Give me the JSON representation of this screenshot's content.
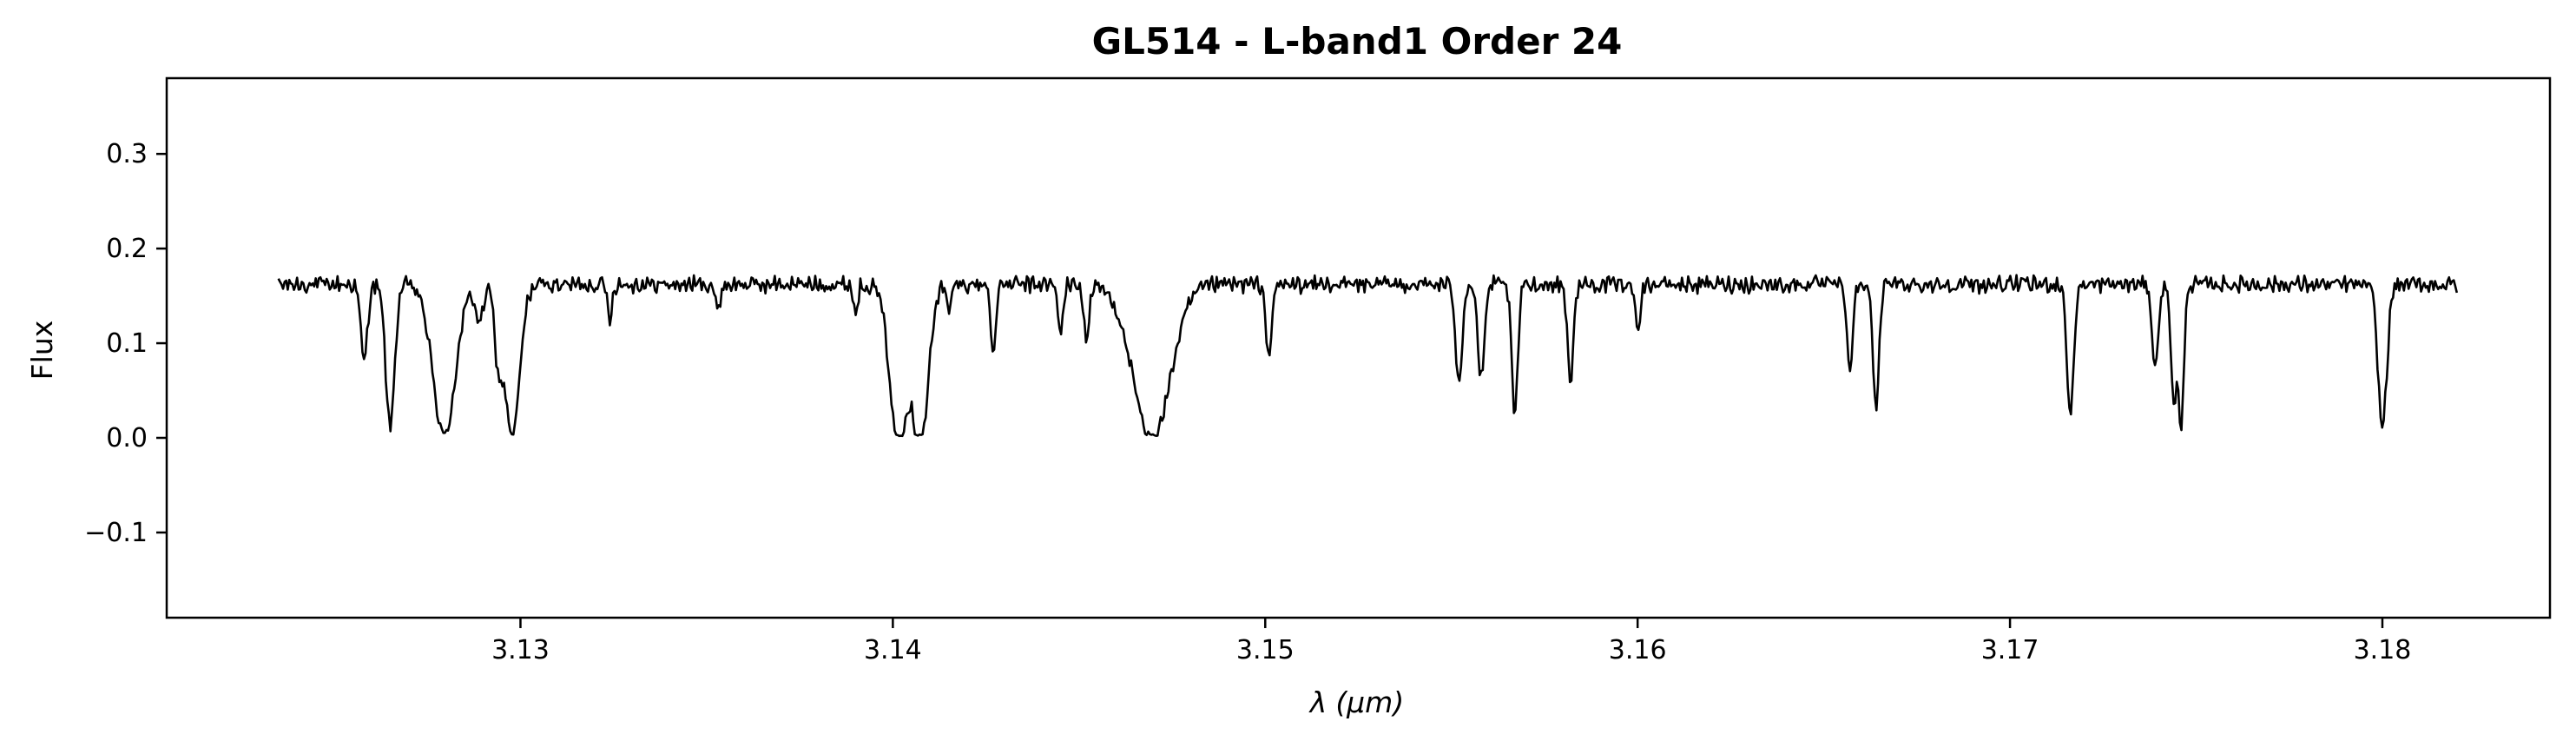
{
  "chart_data": {
    "type": "line",
    "title": "GL514 - L-band1 Order 24",
    "xlabel_symbol": "λ",
    "xlabel_unit": "(μm)",
    "ylabel": "Flux",
    "xlim": [
      3.1205,
      3.1845
    ],
    "ylim": [
      -0.19,
      0.38
    ],
    "xticks": [
      3.13,
      3.14,
      3.15,
      3.16,
      3.17,
      3.18
    ],
    "xtick_labels": [
      "3.13",
      "3.14",
      "3.15",
      "3.16",
      "3.17",
      "3.18"
    ],
    "yticks": [
      -0.1,
      0.0,
      0.1,
      0.2,
      0.3
    ],
    "ytick_labels": [
      "−0.1",
      "0.0",
      "0.1",
      "0.2",
      "0.3"
    ],
    "grid": false,
    "line_color": "#000000",
    "series": [
      {
        "x_start": 3.1235,
        "x_end": 3.182,
        "continuum": 0.162,
        "noise": 0.007,
        "absorption_lines": [
          {
            "center": 3.1258,
            "depth": 0.08,
            "width": 9e-05
          },
          {
            "center": 3.1265,
            "depth": 0.15,
            "width": 0.00012
          },
          {
            "center": 3.12795,
            "depth": 0.16,
            "width": 0.0003
          },
          {
            "center": 3.1289,
            "depth": 0.04,
            "width": 0.0001
          },
          {
            "center": 3.1294,
            "depth": 0.07,
            "width": 0.0001
          },
          {
            "center": 3.12978,
            "depth": 0.16,
            "width": 0.0002
          },
          {
            "center": 3.1324,
            "depth": 0.035,
            "width": 6e-05
          },
          {
            "center": 3.1353,
            "depth": 0.03,
            "width": 6e-05
          },
          {
            "center": 3.139,
            "depth": 0.03,
            "width": 6e-05
          },
          {
            "center": 3.14015,
            "depth": 0.17,
            "width": 0.00023
          },
          {
            "center": 3.14075,
            "depth": 0.17,
            "width": 0.0002
          },
          {
            "center": 3.1415,
            "depth": 0.03,
            "width": 6e-05
          },
          {
            "center": 3.1427,
            "depth": 0.07,
            "width": 7e-05
          },
          {
            "center": 3.1445,
            "depth": 0.05,
            "width": 7e-05
          },
          {
            "center": 3.1452,
            "depth": 0.06,
            "width": 7e-05
          },
          {
            "center": 3.14695,
            "depth": 0.165,
            "width": 0.0005
          },
          {
            "center": 3.1501,
            "depth": 0.075,
            "width": 8e-05
          },
          {
            "center": 3.1552,
            "depth": 0.1,
            "width": 9e-05
          },
          {
            "center": 3.1558,
            "depth": 0.1,
            "width": 9e-05
          },
          {
            "center": 3.1567,
            "depth": 0.14,
            "width": 8e-05
          },
          {
            "center": 3.1582,
            "depth": 0.1,
            "width": 8e-05
          },
          {
            "center": 3.16,
            "depth": 0.045,
            "width": 7e-05
          },
          {
            "center": 3.1657,
            "depth": 0.09,
            "width": 8e-05
          },
          {
            "center": 3.1664,
            "depth": 0.13,
            "width": 8e-05
          },
          {
            "center": 3.1717,
            "depth": 0.04,
            "width": 7e-05
          },
          {
            "center": 3.1716,
            "depth": 0.12,
            "width": 8e-05
          },
          {
            "center": 3.1739,
            "depth": 0.09,
            "width": 8e-05
          },
          {
            "center": 3.1744,
            "depth": 0.12,
            "width": 8e-05
          },
          {
            "center": 3.1746,
            "depth": 0.15,
            "width": 7e-05
          },
          {
            "center": 3.18,
            "depth": 0.15,
            "width": 0.00012
          }
        ]
      }
    ]
  }
}
